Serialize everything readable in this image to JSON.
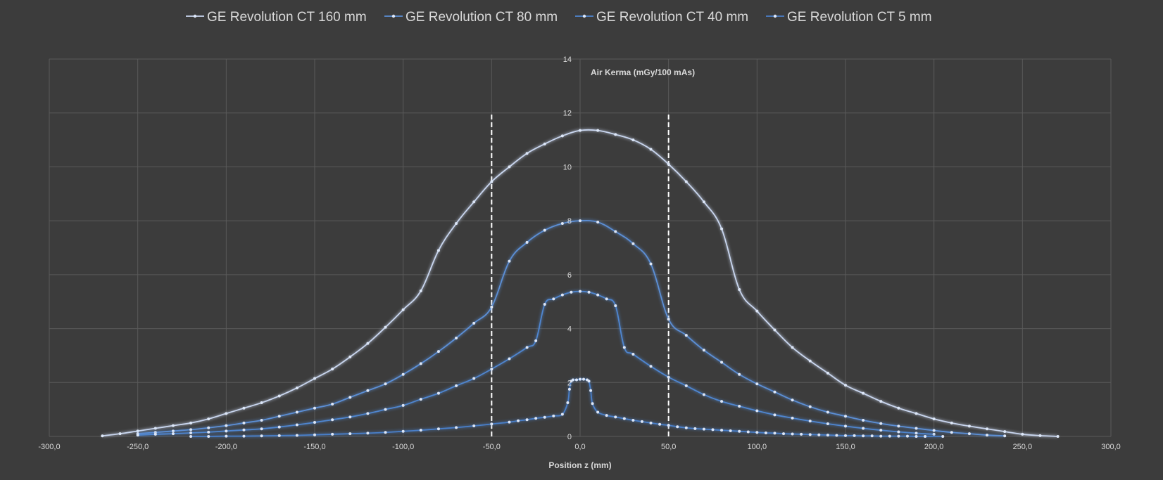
{
  "chart_data": {
    "type": "line",
    "title": "",
    "xlabel": "Position z (mm)",
    "ylabel": "Air Kerma (mGy/100 mAs)",
    "xlim": [
      -300,
      300
    ],
    "ylim": [
      0,
      14
    ],
    "x_ticks": [
      -300,
      -250,
      -200,
      -150,
      -100,
      -50,
      0,
      50,
      100,
      150,
      200,
      250,
      300
    ],
    "x_tick_labels": [
      "-300,0",
      "-250,0",
      "-200,0",
      "-150,0",
      "-100,0",
      "-50,0",
      "0,0",
      "50,0",
      "100,0",
      "150,0",
      "200,0",
      "250,0",
      "300,0"
    ],
    "y_ticks": [
      0,
      2,
      4,
      6,
      8,
      10,
      12,
      14
    ],
    "y_tick_labels": [
      "0",
      "2",
      "4",
      "6",
      "8",
      "10",
      "12",
      "14"
    ],
    "grid": true,
    "legend_position": "top",
    "reference_lines": [
      {
        "x": -50,
        "y_range": [
          0,
          12
        ],
        "style": "dashed",
        "color": "#ffffff"
      },
      {
        "x": 50,
        "y_range": [
          0,
          12
        ],
        "style": "dashed",
        "color": "#ffffff"
      }
    ],
    "series": [
      {
        "name": "GE Revolution CT 160 mm",
        "color": "#c9d6ef",
        "points": [
          [
            -270,
            0.02
          ],
          [
            -260,
            0.1
          ],
          [
            -250,
            0.2
          ],
          [
            -240,
            0.3
          ],
          [
            -230,
            0.4
          ],
          [
            -220,
            0.5
          ],
          [
            -210,
            0.65
          ],
          [
            -200,
            0.85
          ],
          [
            -190,
            1.05
          ],
          [
            -180,
            1.25
          ],
          [
            -170,
            1.5
          ],
          [
            -160,
            1.8
          ],
          [
            -150,
            2.15
          ],
          [
            -140,
            2.5
          ],
          [
            -130,
            2.95
          ],
          [
            -120,
            3.45
          ],
          [
            -110,
            4.05
          ],
          [
            -100,
            4.7
          ],
          [
            -90,
            5.4
          ],
          [
            -80,
            6.9
          ],
          [
            -70,
            7.9
          ],
          [
            -60,
            8.7
          ],
          [
            -50,
            9.45
          ],
          [
            -40,
            10.0
          ],
          [
            -30,
            10.5
          ],
          [
            -20,
            10.85
          ],
          [
            -10,
            11.15
          ],
          [
            0,
            11.35
          ],
          [
            10,
            11.35
          ],
          [
            20,
            11.2
          ],
          [
            30,
            11.0
          ],
          [
            40,
            10.65
          ],
          [
            50,
            10.1
          ],
          [
            60,
            9.45
          ],
          [
            70,
            8.7
          ],
          [
            80,
            7.7
          ],
          [
            90,
            5.45
          ],
          [
            100,
            4.65
          ],
          [
            110,
            3.95
          ],
          [
            120,
            3.3
          ],
          [
            130,
            2.8
          ],
          [
            140,
            2.35
          ],
          [
            150,
            1.9
          ],
          [
            160,
            1.6
          ],
          [
            170,
            1.3
          ],
          [
            180,
            1.05
          ],
          [
            190,
            0.85
          ],
          [
            200,
            0.65
          ],
          [
            210,
            0.5
          ],
          [
            220,
            0.38
          ],
          [
            230,
            0.28
          ],
          [
            240,
            0.18
          ],
          [
            250,
            0.08
          ],
          [
            260,
            0.03
          ],
          [
            270,
            0.0
          ]
        ]
      },
      {
        "name": "GE Revolution CT 80 mm",
        "color": "#5b8fd6",
        "points": [
          [
            -250,
            0.1
          ],
          [
            -240,
            0.15
          ],
          [
            -230,
            0.2
          ],
          [
            -220,
            0.25
          ],
          [
            -210,
            0.32
          ],
          [
            -200,
            0.4
          ],
          [
            -190,
            0.5
          ],
          [
            -180,
            0.6
          ],
          [
            -170,
            0.75
          ],
          [
            -160,
            0.9
          ],
          [
            -150,
            1.05
          ],
          [
            -140,
            1.2
          ],
          [
            -130,
            1.45
          ],
          [
            -120,
            1.7
          ],
          [
            -110,
            1.95
          ],
          [
            -100,
            2.3
          ],
          [
            -90,
            2.7
          ],
          [
            -80,
            3.15
          ],
          [
            -70,
            3.65
          ],
          [
            -60,
            4.2
          ],
          [
            -50,
            4.8
          ],
          [
            -40,
            6.5
          ],
          [
            -30,
            7.2
          ],
          [
            -20,
            7.65
          ],
          [
            -10,
            7.9
          ],
          [
            0,
            8.0
          ],
          [
            10,
            7.95
          ],
          [
            20,
            7.6
          ],
          [
            30,
            7.15
          ],
          [
            40,
            6.4
          ],
          [
            50,
            4.35
          ],
          [
            60,
            3.75
          ],
          [
            70,
            3.2
          ],
          [
            80,
            2.75
          ],
          [
            90,
            2.3
          ],
          [
            100,
            1.95
          ],
          [
            110,
            1.65
          ],
          [
            120,
            1.35
          ],
          [
            130,
            1.1
          ],
          [
            140,
            0.9
          ],
          [
            150,
            0.75
          ],
          [
            160,
            0.6
          ],
          [
            170,
            0.48
          ],
          [
            180,
            0.38
          ],
          [
            190,
            0.3
          ],
          [
            200,
            0.22
          ],
          [
            210,
            0.15
          ],
          [
            220,
            0.1
          ],
          [
            230,
            0.05
          ],
          [
            240,
            0.02
          ]
        ]
      },
      {
        "name": "GE Revolution CT 40 mm",
        "color": "#4f86d0",
        "points": [
          [
            -250,
            0.05
          ],
          [
            -240,
            0.08
          ],
          [
            -230,
            0.1
          ],
          [
            -220,
            0.13
          ],
          [
            -210,
            0.16
          ],
          [
            -200,
            0.2
          ],
          [
            -190,
            0.24
          ],
          [
            -180,
            0.28
          ],
          [
            -170,
            0.35
          ],
          [
            -160,
            0.43
          ],
          [
            -150,
            0.52
          ],
          [
            -140,
            0.62
          ],
          [
            -130,
            0.72
          ],
          [
            -120,
            0.85
          ],
          [
            -110,
            1.0
          ],
          [
            -100,
            1.15
          ],
          [
            -90,
            1.38
          ],
          [
            -80,
            1.6
          ],
          [
            -70,
            1.88
          ],
          [
            -60,
            2.15
          ],
          [
            -50,
            2.5
          ],
          [
            -40,
            2.88
          ],
          [
            -30,
            3.3
          ],
          [
            -25,
            3.55
          ],
          [
            -20,
            4.9
          ],
          [
            -15,
            5.1
          ],
          [
            -10,
            5.25
          ],
          [
            -5,
            5.35
          ],
          [
            0,
            5.38
          ],
          [
            5,
            5.35
          ],
          [
            10,
            5.25
          ],
          [
            15,
            5.1
          ],
          [
            20,
            4.85
          ],
          [
            25,
            3.3
          ],
          [
            30,
            3.05
          ],
          [
            40,
            2.6
          ],
          [
            50,
            2.2
          ],
          [
            60,
            1.88
          ],
          [
            70,
            1.55
          ],
          [
            80,
            1.3
          ],
          [
            90,
            1.12
          ],
          [
            100,
            0.95
          ],
          [
            110,
            0.8
          ],
          [
            120,
            0.68
          ],
          [
            130,
            0.57
          ],
          [
            140,
            0.47
          ],
          [
            150,
            0.38
          ],
          [
            160,
            0.3
          ],
          [
            170,
            0.23
          ],
          [
            180,
            0.17
          ],
          [
            190,
            0.12
          ],
          [
            200,
            0.08
          ]
        ]
      },
      {
        "name": "GE Revolution CT 5 mm",
        "color": "#4a7fc9",
        "points": [
          [
            -220,
            0.0
          ],
          [
            -210,
            0.0
          ],
          [
            -200,
            0.01
          ],
          [
            -190,
            0.01
          ],
          [
            -180,
            0.02
          ],
          [
            -170,
            0.03
          ],
          [
            -160,
            0.04
          ],
          [
            -150,
            0.06
          ],
          [
            -140,
            0.08
          ],
          [
            -130,
            0.1
          ],
          [
            -120,
            0.12
          ],
          [
            -110,
            0.15
          ],
          [
            -100,
            0.19
          ],
          [
            -90,
            0.23
          ],
          [
            -80,
            0.28
          ],
          [
            -70,
            0.33
          ],
          [
            -60,
            0.39
          ],
          [
            -50,
            0.46
          ],
          [
            -40,
            0.53
          ],
          [
            -35,
            0.58
          ],
          [
            -30,
            0.62
          ],
          [
            -25,
            0.67
          ],
          [
            -20,
            0.71
          ],
          [
            -15,
            0.76
          ],
          [
            -10,
            0.82
          ],
          [
            -7,
            1.25
          ],
          [
            -6,
            1.75
          ],
          [
            -5,
            2.05
          ],
          [
            -4,
            2.1
          ],
          [
            -2,
            2.1
          ],
          [
            0,
            2.12
          ],
          [
            2,
            2.12
          ],
          [
            4,
            2.1
          ],
          [
            5,
            2.05
          ],
          [
            6,
            1.7
          ],
          [
            7,
            1.22
          ],
          [
            10,
            0.9
          ],
          [
            15,
            0.78
          ],
          [
            20,
            0.72
          ],
          [
            25,
            0.66
          ],
          [
            30,
            0.6
          ],
          [
            35,
            0.55
          ],
          [
            40,
            0.5
          ],
          [
            45,
            0.45
          ],
          [
            50,
            0.41
          ],
          [
            55,
            0.36
          ],
          [
            60,
            0.32
          ],
          [
            65,
            0.29
          ],
          [
            70,
            0.27
          ],
          [
            75,
            0.25
          ],
          [
            80,
            0.23
          ],
          [
            85,
            0.21
          ],
          [
            90,
            0.19
          ],
          [
            95,
            0.17
          ],
          [
            100,
            0.15
          ],
          [
            105,
            0.13
          ],
          [
            110,
            0.12
          ],
          [
            115,
            0.1
          ],
          [
            120,
            0.09
          ],
          [
            125,
            0.08
          ],
          [
            130,
            0.07
          ],
          [
            135,
            0.06
          ],
          [
            140,
            0.05
          ],
          [
            145,
            0.04
          ],
          [
            150,
            0.03
          ],
          [
            155,
            0.03
          ],
          [
            160,
            0.02
          ],
          [
            165,
            0.02
          ],
          [
            170,
            0.01
          ],
          [
            175,
            0.01
          ],
          [
            180,
            0.01
          ],
          [
            185,
            0.01
          ],
          [
            190,
            0.0
          ],
          [
            195,
            0.0
          ],
          [
            205,
            0.0
          ]
        ]
      }
    ]
  }
}
